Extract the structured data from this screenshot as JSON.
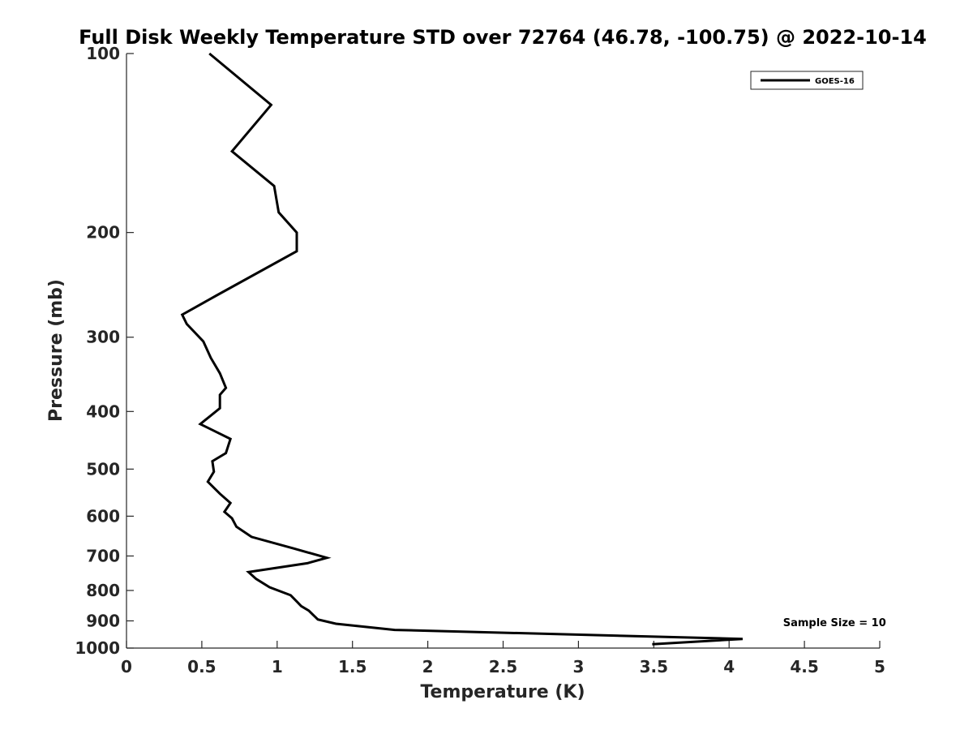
{
  "chart_data": {
    "type": "line",
    "title": "Full Disk Weekly Temperature STD over 72764 (46.78, -100.75) @ 2022-10-14",
    "xlabel": "Temperature (K)",
    "ylabel": "Pressure (mb)",
    "xlim": [
      0,
      5
    ],
    "ylim": [
      100,
      1000
    ],
    "y_scale": "log",
    "y_reversed": true,
    "grid": false,
    "xticks": [
      0,
      0.5,
      1,
      1.5,
      2,
      2.5,
      3,
      3.5,
      4,
      4.5,
      5
    ],
    "xtick_labels": [
      "0",
      "0.5",
      "1",
      "1.5",
      "2",
      "2.5",
      "3",
      "3.5",
      "4",
      "4.5",
      "5"
    ],
    "yticks": [
      100,
      200,
      300,
      400,
      500,
      600,
      700,
      800,
      900,
      1000
    ],
    "ytick_labels": [
      "100",
      "200",
      "300",
      "400",
      "500",
      "600",
      "700",
      "800",
      "900",
      "1000"
    ],
    "legend_position": "top-right",
    "series": [
      {
        "name": "GOES-16",
        "color": "#000000",
        "x": [
          0.55,
          0.96,
          0.7,
          0.98,
          1.01,
          1.13,
          1.13,
          0.6,
          0.37,
          0.4,
          0.51,
          0.56,
          0.62,
          0.66,
          0.62,
          0.62,
          0.49,
          0.69,
          0.66,
          0.57,
          0.58,
          0.54,
          0.62,
          0.69,
          0.65,
          0.7,
          0.73,
          0.83,
          1.11,
          1.33,
          1.2,
          0.81,
          0.86,
          0.95,
          1.09,
          1.13,
          1.16,
          1.21,
          1.24,
          1.27,
          1.39,
          1.78,
          4.09,
          3.49
        ],
        "y": [
          100,
          122,
          146,
          167,
          185,
          200,
          215,
          255,
          275,
          285,
          305,
          325,
          345,
          365,
          375,
          395,
          420,
          445,
          470,
          485,
          505,
          525,
          550,
          570,
          590,
          605,
          625,
          650,
          680,
          705,
          720,
          745,
          765,
          790,
          815,
          835,
          850,
          865,
          880,
          895,
          910,
          932,
          965,
          985
        ]
      }
    ],
    "annotations": [
      {
        "text": "Sample Size = 10",
        "x": 4.7,
        "y": 905
      }
    ]
  }
}
